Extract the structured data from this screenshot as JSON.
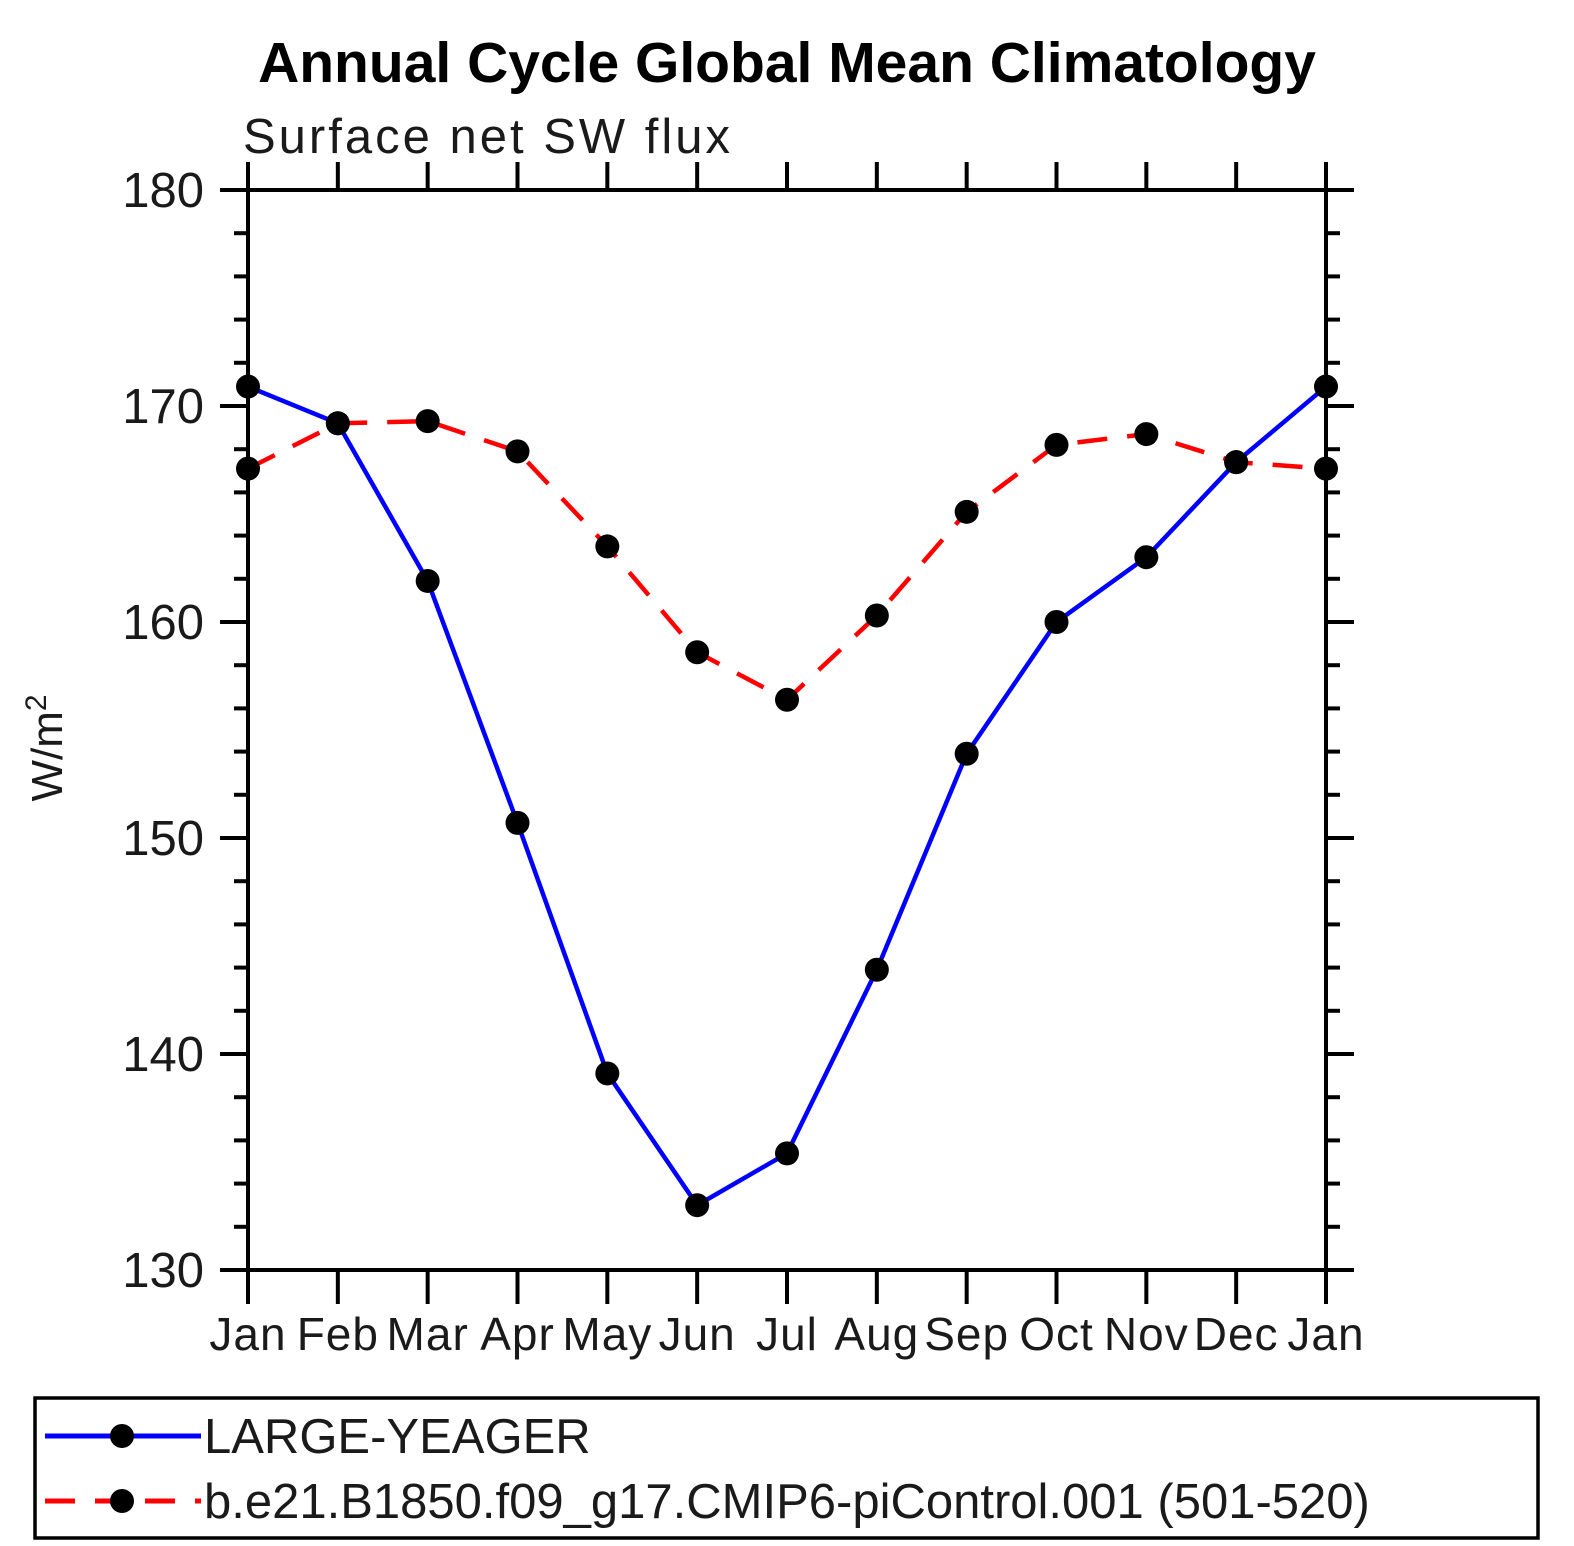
{
  "page": {
    "background": "#ffffff",
    "axis_color": "#000000",
    "text_color": "#1a1a1a"
  },
  "chart_data": {
    "type": "line",
    "title": "Annual Cycle Global Mean Climatology",
    "subtitle": "Surface net SW flux",
    "ylabel_base": "W/m",
    "ylabel_exp": "2",
    "categories": [
      "Jan",
      "Feb",
      "Mar",
      "Apr",
      "May",
      "Jun",
      "Jul",
      "Aug",
      "Sep",
      "Oct",
      "Nov",
      "Dec",
      "Jan"
    ],
    "ylim": [
      130,
      180
    ],
    "ytick_major": 10,
    "ytick_minor": 2,
    "ytick_labels": [
      "130",
      "140",
      "150",
      "160",
      "170",
      "180"
    ],
    "grid": "off",
    "legend_position": "bottom-left-box",
    "marker_color": "#000000",
    "series": [
      {
        "name": "LARGE-YEAGER",
        "color": "#0000ff",
        "style": "solid",
        "marker": "circle",
        "values": [
          170.9,
          169.2,
          161.9,
          150.7,
          139.1,
          133.0,
          135.4,
          143.9,
          153.9,
          160.0,
          163.0,
          167.4,
          170.9
        ]
      },
      {
        "name": "b.e21.B1850.f09_g17.CMIP6-piControl.001 (501-520)",
        "color": "#ff0000",
        "style": "dashed",
        "marker": "circle",
        "values": [
          167.1,
          169.2,
          169.3,
          167.9,
          163.5,
          158.6,
          156.4,
          160.3,
          165.1,
          168.2,
          168.7,
          167.4,
          167.1
        ]
      }
    ]
  }
}
